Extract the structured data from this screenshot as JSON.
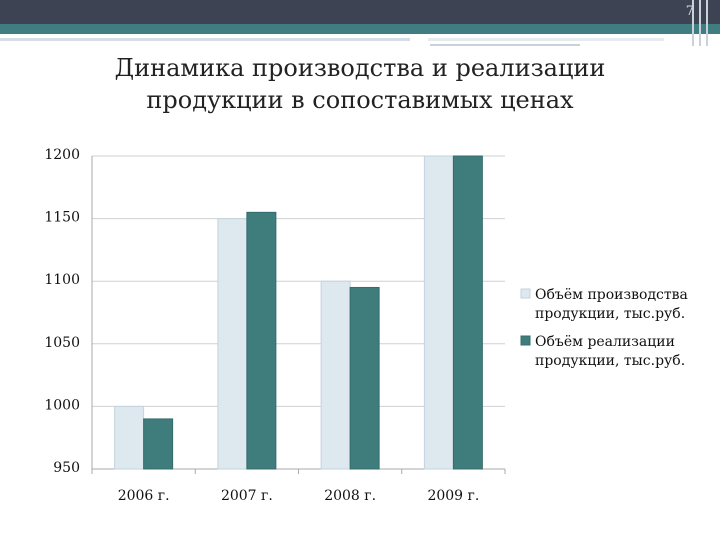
{
  "slide": {
    "page_number": "7",
    "title": "Динамика производства и реализации продукции в сопоставимых ценах"
  },
  "colors": {
    "header_dark": "#3d4352",
    "header_teal": "#3f7d82",
    "series_production": "#dde8ef",
    "series_sales": "#3f7d7d",
    "grid": "#d0d0d0"
  },
  "chart_data": {
    "type": "bar",
    "categories": [
      "2006 г.",
      "2007 г.",
      "2008 г.",
      "2009 г."
    ],
    "series": [
      {
        "name": "Объём производства продукции, тыс.руб.",
        "values": [
          1000,
          1150,
          1100,
          1200
        ]
      },
      {
        "name": "Объём реализации продукции, тыс.руб.",
        "values": [
          990,
          1155,
          1095,
          1200
        ]
      }
    ],
    "ylim": [
      950,
      1200
    ],
    "yticks": [
      "1200",
      "1150",
      "1100",
      "1050",
      "1000",
      "950"
    ],
    "grid": true,
    "legend_position": "right"
  }
}
